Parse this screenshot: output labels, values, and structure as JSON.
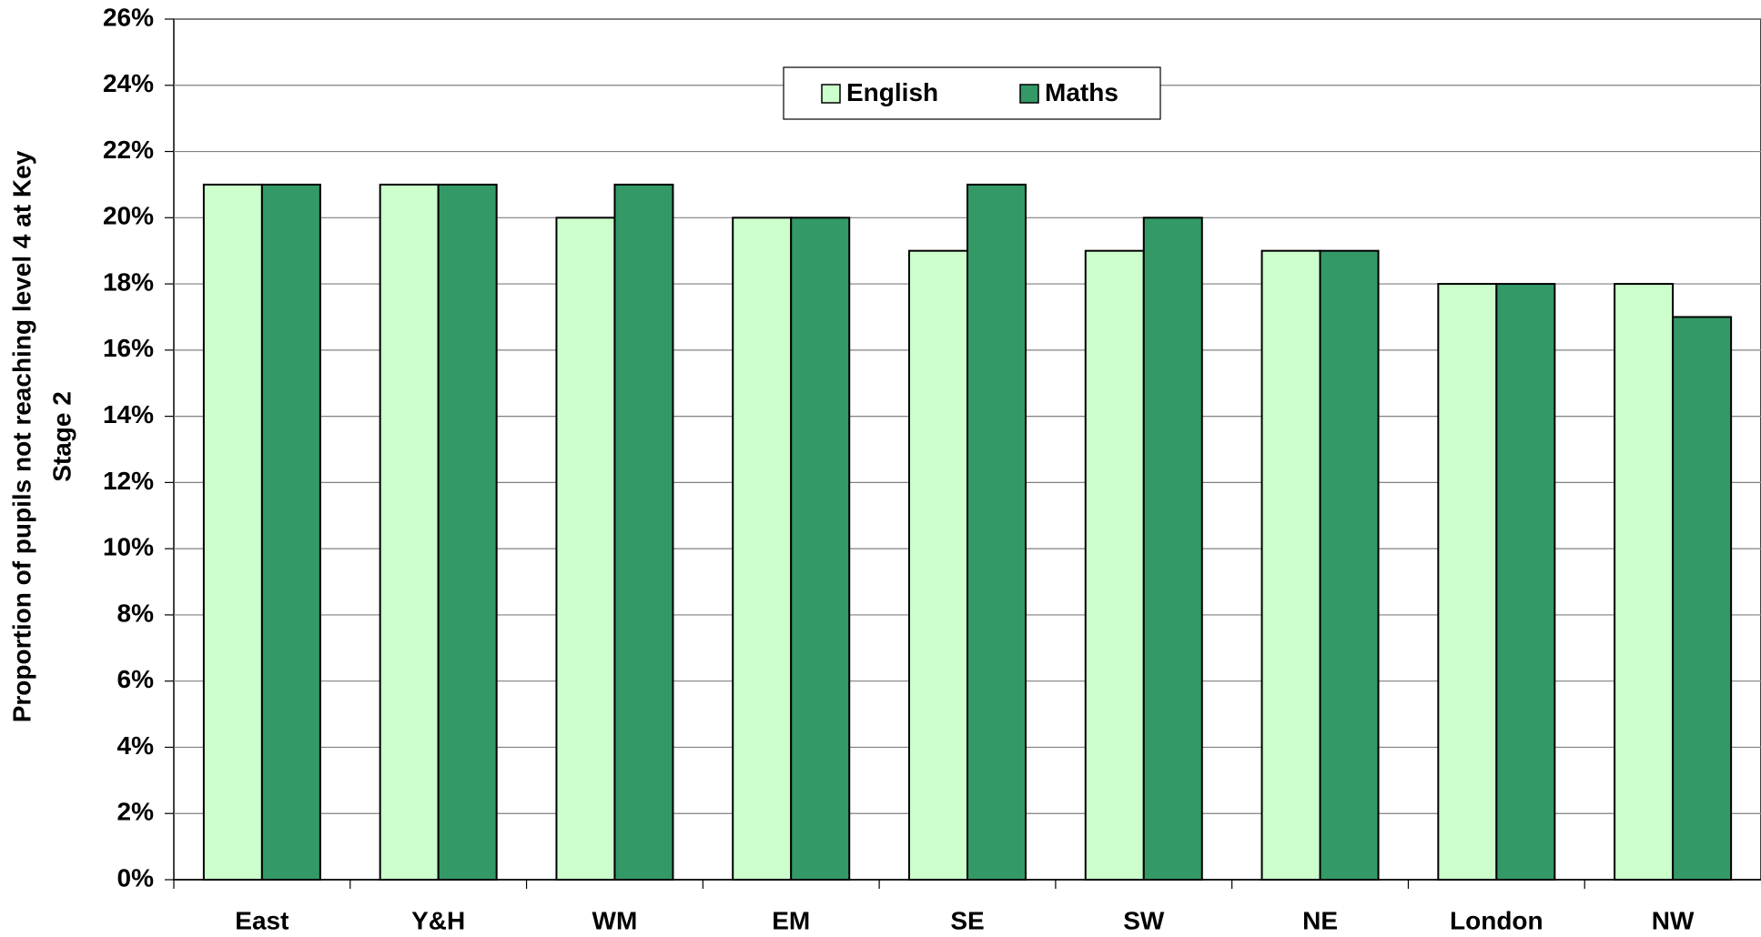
{
  "chart_data": {
    "type": "bar",
    "y_label": [
      "Proportion of pupils not reaching level 4 at Key",
      "Stage 2"
    ],
    "categories": [
      "East",
      "Y&H",
      "WM",
      "EM",
      "SE",
      "SW",
      "NE",
      "London",
      "NW"
    ],
    "series": [
      {
        "name": "English",
        "color": "#ccffcc",
        "values": [
          21,
          21,
          20,
          20,
          19,
          19,
          19,
          18,
          18
        ]
      },
      {
        "name": "Maths",
        "color": "#339966",
        "values": [
          21,
          21,
          21,
          20,
          21,
          20,
          19,
          18,
          17
        ]
      }
    ],
    "ylim": [
      0,
      26
    ],
    "yticks": [
      {
        "value": 0,
        "label": "0%"
      },
      {
        "value": 2,
        "label": "2%"
      },
      {
        "value": 4,
        "label": "4%"
      },
      {
        "value": 6,
        "label": "6%"
      },
      {
        "value": 8,
        "label": "8%"
      },
      {
        "value": 10,
        "label": "10%"
      },
      {
        "value": 12,
        "label": "12%"
      },
      {
        "value": 14,
        "label": "14%"
      },
      {
        "value": 16,
        "label": "16%"
      },
      {
        "value": 18,
        "label": "18%"
      },
      {
        "value": 20,
        "label": "20%"
      },
      {
        "value": 22,
        "label": "22%"
      },
      {
        "value": 24,
        "label": "24%"
      },
      {
        "value": 26,
        "label": "26%"
      }
    ],
    "grid": true,
    "legend": "top"
  }
}
